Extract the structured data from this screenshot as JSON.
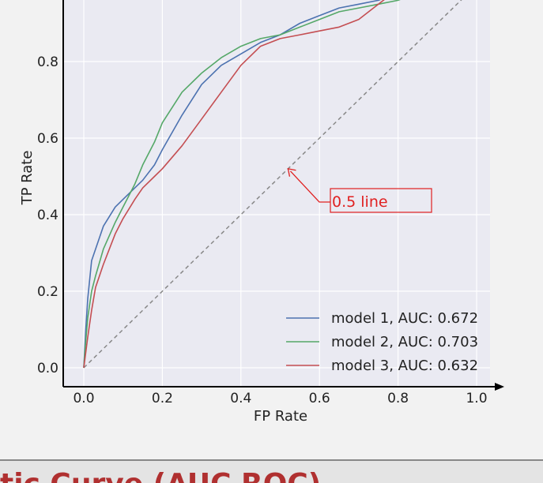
{
  "chart_data": {
    "type": "line",
    "title": "",
    "xlabel": "FP Rate",
    "ylabel": "TP Rate",
    "xlim": [
      -0.05,
      1.05
    ],
    "ylim": [
      -0.05,
      1.0
    ],
    "x_ticks": [
      "0.0",
      "0.2",
      "0.4",
      "0.6",
      "0.8",
      "1.0"
    ],
    "y_ticks": [
      "0.0",
      "0.2",
      "0.4",
      "0.6",
      "0.8"
    ],
    "grid": true,
    "legend_position": "bottom-right",
    "series": [
      {
        "name": "model 1, AUC: 0.672",
        "color": "#4c72b0",
        "x": [
          0.0,
          0.005,
          0.01,
          0.02,
          0.03,
          0.05,
          0.08,
          0.1,
          0.13,
          0.15,
          0.18,
          0.2,
          0.25,
          0.3,
          0.35,
          0.4,
          0.45,
          0.5,
          0.55,
          0.6,
          0.65,
          0.7,
          0.75,
          0.8,
          0.85,
          0.9,
          0.95,
          1.0
        ],
        "y": [
          0.0,
          0.1,
          0.18,
          0.28,
          0.31,
          0.37,
          0.42,
          0.44,
          0.47,
          0.49,
          0.53,
          0.57,
          0.66,
          0.74,
          0.79,
          0.82,
          0.85,
          0.87,
          0.9,
          0.92,
          0.94,
          0.95,
          0.96,
          0.98,
          0.99,
          1.0,
          1.0,
          1.0
        ]
      },
      {
        "name": "model 2, AUC: 0.703",
        "color": "#55a868",
        "x": [
          0.0,
          0.005,
          0.01,
          0.02,
          0.03,
          0.05,
          0.08,
          0.1,
          0.13,
          0.15,
          0.18,
          0.2,
          0.25,
          0.3,
          0.35,
          0.4,
          0.45,
          0.5,
          0.55,
          0.6,
          0.65,
          0.7,
          0.75,
          0.8,
          0.85,
          0.9,
          0.95,
          1.0
        ],
        "y": [
          0.0,
          0.07,
          0.13,
          0.2,
          0.24,
          0.31,
          0.38,
          0.42,
          0.48,
          0.53,
          0.59,
          0.64,
          0.72,
          0.77,
          0.81,
          0.84,
          0.86,
          0.87,
          0.89,
          0.91,
          0.93,
          0.94,
          0.95,
          0.96,
          0.98,
          0.99,
          1.0,
          1.0
        ]
      },
      {
        "name": "model 3, AUC: 0.632",
        "color": "#c44e52",
        "x": [
          0.0,
          0.005,
          0.01,
          0.02,
          0.03,
          0.05,
          0.08,
          0.1,
          0.13,
          0.15,
          0.18,
          0.2,
          0.25,
          0.3,
          0.35,
          0.4,
          0.45,
          0.5,
          0.55,
          0.6,
          0.65,
          0.7,
          0.75,
          0.8,
          0.85,
          0.9,
          0.95,
          1.0
        ],
        "y": [
          0.0,
          0.04,
          0.08,
          0.15,
          0.21,
          0.27,
          0.35,
          0.39,
          0.44,
          0.47,
          0.5,
          0.52,
          0.58,
          0.65,
          0.72,
          0.79,
          0.84,
          0.86,
          0.87,
          0.88,
          0.89,
          0.91,
          0.95,
          0.99,
          1.0,
          1.0,
          1.0,
          1.0
        ]
      }
    ],
    "reference_line": {
      "x": [
        0.0,
        1.0
      ],
      "y": [
        0.0,
        1.0
      ],
      "color": "#888888"
    },
    "annotation": {
      "text": "0.5 line",
      "x": 0.52,
      "y": 0.52,
      "color": "#e02020"
    }
  },
  "bottom_title": "tic Curve (AUC ROC)"
}
